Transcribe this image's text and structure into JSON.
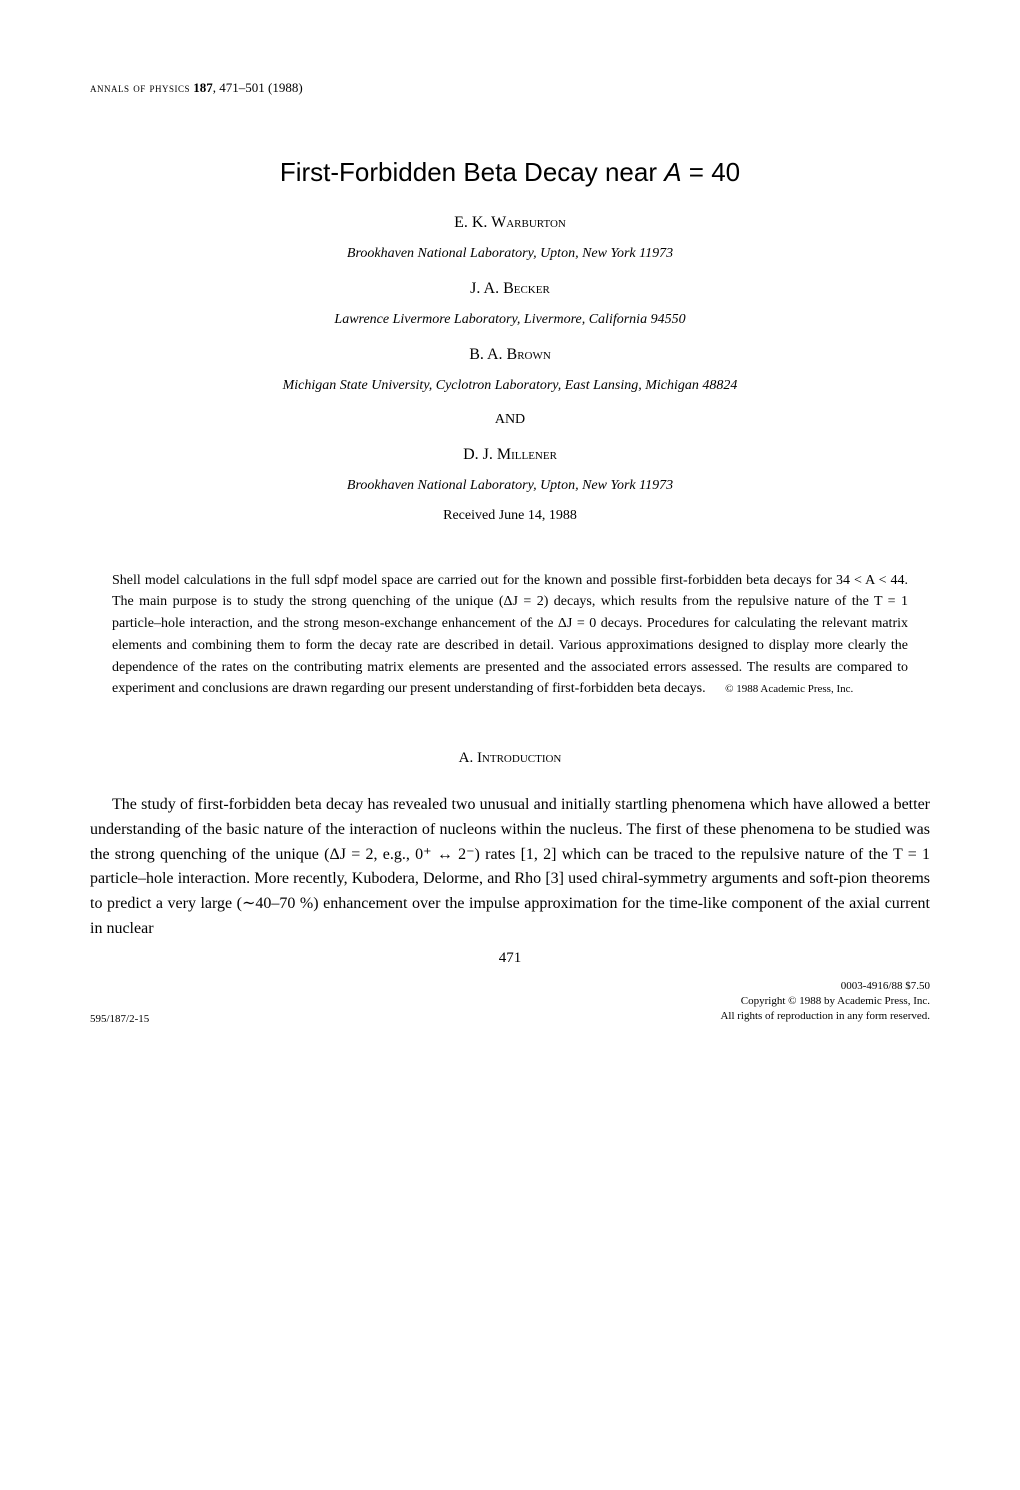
{
  "header": {
    "journal_name": "annals of physics",
    "volume": "187",
    "pages": "471–501",
    "year": "(1988)"
  },
  "title": "First-Forbidden Beta Decay near A = 40",
  "authors": [
    {
      "name": "E. K. Warburton",
      "affiliation": "Brookhaven National Laboratory, Upton, New York 11973"
    },
    {
      "name": "J. A. Becker",
      "affiliation": "Lawrence Livermore Laboratory, Livermore, California 94550"
    },
    {
      "name": "B. A. Brown",
      "affiliation": "Michigan State University, Cyclotron Laboratory, East Lansing, Michigan 48824"
    },
    {
      "name": "D. J. Millener",
      "affiliation": "Brookhaven National Laboratory, Upton, New York 11973"
    }
  ],
  "and_word": "AND",
  "received": "Received June 14, 1988",
  "abstract": "Shell model calculations in the full sdpf model space are carried out for the known and possible first-forbidden beta decays for 34 < A < 44. The main purpose is to study the strong quenching of the unique (ΔJ = 2) decays, which results from the repulsive nature of the T = 1 particle–hole interaction, and the strong meson-exchange enhancement of the ΔJ = 0 decays. Procedures for calculating the relevant matrix elements and combining them to form the decay rate are described in detail. Various approximations designed to display more clearly the dependence of the rates on the contributing matrix elements are presented and the associated errors assessed. The results are compared to experiment and conclusions are drawn regarding our present understanding of first-forbidden beta decays.",
  "abstract_copyright": "© 1988 Academic Press, Inc.",
  "section_heading": "A. Introduction",
  "body_paragraph": "The study of first-forbidden beta decay has revealed two unusual and initially startling phenomena which have allowed a better understanding of the basic nature of the interaction of nucleons within the nucleus. The first of these phenomena to be studied was the strong quenching of the unique (ΔJ = 2, e.g., 0⁺ ↔ 2⁻) rates [1, 2] which can be traced to the repulsive nature of the T = 1 particle–hole interaction. More recently, Kubodera, Delorme, and Rho [3] used chiral-symmetry arguments and soft-pion theorems to predict a very large (∼40–70 %) enhancement over the impulse approximation for the time-like component of the axial current in nuclear",
  "page_number": "471",
  "footer": {
    "left": "595/187/2-15",
    "issn": "0003-4916/88 $7.50",
    "copyright": "Copyright © 1988 by Academic Press, Inc.",
    "rights": "All rights of reproduction in any form reserved."
  }
}
